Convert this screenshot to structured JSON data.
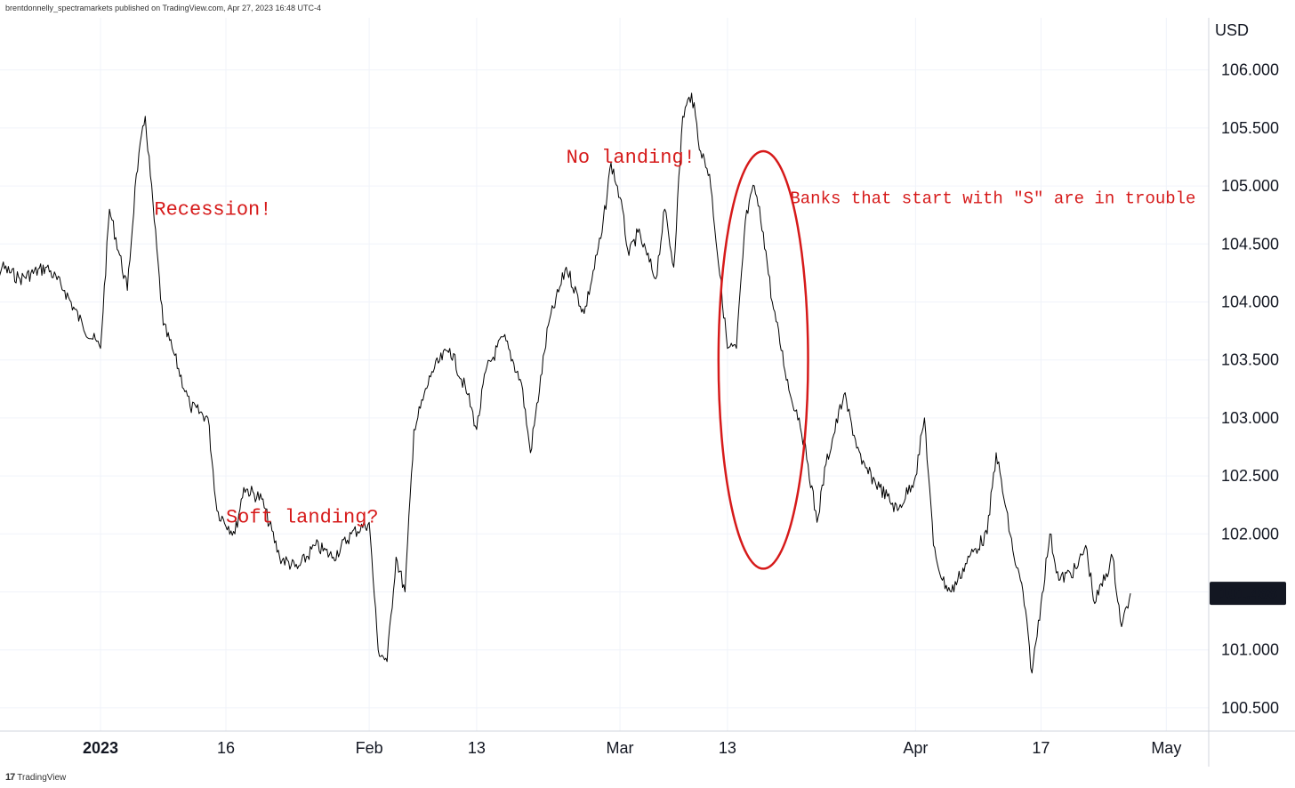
{
  "header": {
    "attribution": "brentdonnelly_spectramarkets published on TradingView.com, Apr 27, 2023 16:48 UTC-4"
  },
  "footer": {
    "logo_mark": "17",
    "logo_text": "TradingView"
  },
  "colors": {
    "price_line": "#000000",
    "annotation": "#d61a1a",
    "grid": "#f0f3fa",
    "price_tag_bg": "#131722",
    "price_tag_text": "#ffffff"
  },
  "chart_data": {
    "type": "line",
    "currency": "USD",
    "last_price": "101.488",
    "ylim": [
      100.3,
      106.45
    ],
    "y_ticks": [
      "100.500",
      "101.000",
      "101.500",
      "102.000",
      "102.500",
      "103.000",
      "103.500",
      "104.000",
      "104.500",
      "105.000",
      "105.500",
      "106.000"
    ],
    "x_ticks": [
      {
        "label": "2023",
        "date": "2023-01-02",
        "bold": true
      },
      {
        "label": "16",
        "date": "2023-01-16",
        "bold": false
      },
      {
        "label": "Feb",
        "date": "2023-02-01",
        "bold": false
      },
      {
        "label": "13",
        "date": "2023-02-13",
        "bold": false
      },
      {
        "label": "Mar",
        "date": "2023-03-01",
        "bold": false
      },
      {
        "label": "13",
        "date": "2023-03-13",
        "bold": false
      },
      {
        "label": "Apr",
        "date": "2023-04-03",
        "bold": false
      },
      {
        "label": "17",
        "date": "2023-04-17",
        "bold": false
      },
      {
        "label": "May",
        "date": "2023-05-01",
        "bold": false
      }
    ],
    "series": [
      {
        "points": [
          [
            "2022-12-20",
            104.0
          ],
          [
            "2022-12-22",
            104.3
          ],
          [
            "2022-12-24",
            104.2
          ],
          [
            "2022-12-27",
            104.3
          ],
          [
            "2022-12-29",
            104.1
          ],
          [
            "2022-12-31",
            103.8
          ],
          [
            "2023-01-02",
            103.6
          ],
          [
            "2023-01-03",
            104.8
          ],
          [
            "2023-01-05",
            104.1
          ],
          [
            "2023-01-06",
            105.1
          ],
          [
            "2023-01-07",
            105.6
          ],
          [
            "2023-01-09",
            103.8
          ],
          [
            "2023-01-10",
            103.6
          ],
          [
            "2023-01-12",
            103.1
          ],
          [
            "2023-01-14",
            103.0
          ],
          [
            "2023-01-15",
            102.2
          ],
          [
            "2023-01-17",
            102.0
          ],
          [
            "2023-01-18",
            102.4
          ],
          [
            "2023-01-20",
            102.3
          ],
          [
            "2023-01-22",
            101.8
          ],
          [
            "2023-01-24",
            101.7
          ],
          [
            "2023-01-26",
            101.9
          ],
          [
            "2023-01-28",
            101.8
          ],
          [
            "2023-01-30",
            102.0
          ],
          [
            "2023-02-01",
            102.1
          ],
          [
            "2023-02-02",
            101.0
          ],
          [
            "2023-02-03",
            100.9
          ],
          [
            "2023-02-04",
            101.8
          ],
          [
            "2023-02-05",
            101.5
          ],
          [
            "2023-02-06",
            102.9
          ],
          [
            "2023-02-08",
            103.4
          ],
          [
            "2023-02-10",
            103.6
          ],
          [
            "2023-02-12",
            103.2
          ],
          [
            "2023-02-13",
            102.9
          ],
          [
            "2023-02-14",
            103.4
          ],
          [
            "2023-02-16",
            103.7
          ],
          [
            "2023-02-18",
            103.3
          ],
          [
            "2023-02-19",
            102.7
          ],
          [
            "2023-02-21",
            103.8
          ],
          [
            "2023-02-23",
            104.3
          ],
          [
            "2023-02-25",
            103.9
          ],
          [
            "2023-02-27",
            104.6
          ],
          [
            "2023-02-28",
            105.2
          ],
          [
            "2023-03-01",
            104.9
          ],
          [
            "2023-03-02",
            104.4
          ],
          [
            "2023-03-03",
            104.6
          ],
          [
            "2023-03-05",
            104.2
          ],
          [
            "2023-03-06",
            104.8
          ],
          [
            "2023-03-07",
            104.3
          ],
          [
            "2023-03-08",
            105.6
          ],
          [
            "2023-03-09",
            105.8
          ],
          [
            "2023-03-10",
            105.3
          ],
          [
            "2023-03-11",
            105.1
          ],
          [
            "2023-03-13",
            103.6
          ],
          [
            "2023-03-14",
            103.6
          ],
          [
            "2023-03-15",
            104.7
          ],
          [
            "2023-03-16",
            105.0
          ],
          [
            "2023-03-17",
            104.6
          ],
          [
            "2023-03-18",
            104.0
          ],
          [
            "2023-03-20",
            103.2
          ],
          [
            "2023-03-21",
            103.0
          ],
          [
            "2023-03-22",
            102.6
          ],
          [
            "2023-03-23",
            102.1
          ],
          [
            "2023-03-24",
            102.6
          ],
          [
            "2023-03-26",
            103.2
          ],
          [
            "2023-03-28",
            102.6
          ],
          [
            "2023-03-30",
            102.4
          ],
          [
            "2023-04-01",
            102.2
          ],
          [
            "2023-04-03",
            102.5
          ],
          [
            "2023-04-04",
            103.0
          ],
          [
            "2023-04-05",
            101.9
          ],
          [
            "2023-04-06",
            101.6
          ],
          [
            "2023-04-07",
            101.5
          ],
          [
            "2023-04-09",
            101.8
          ],
          [
            "2023-04-11",
            102.0
          ],
          [
            "2023-04-12",
            102.7
          ],
          [
            "2023-04-14",
            101.8
          ],
          [
            "2023-04-15",
            101.5
          ],
          [
            "2023-04-16",
            100.8
          ],
          [
            "2023-04-17",
            101.4
          ],
          [
            "2023-04-18",
            102.0
          ],
          [
            "2023-04-19",
            101.6
          ],
          [
            "2023-04-21",
            101.7
          ],
          [
            "2023-04-22",
            101.9
          ],
          [
            "2023-04-23",
            101.4
          ],
          [
            "2023-04-25",
            101.8
          ],
          [
            "2023-04-26",
            101.2
          ],
          [
            "2023-04-27",
            101.488
          ]
        ]
      }
    ],
    "annotations": [
      {
        "id": "recession",
        "text": "Recession!",
        "date": "2023-01-08",
        "value": 104.75
      },
      {
        "id": "soft-landing",
        "text": "Soft landing?",
        "date": "2023-01-16",
        "value": 102.1
      },
      {
        "id": "no-landing",
        "text": "No landing!",
        "date": "2023-02-23",
        "value": 105.2
      },
      {
        "id": "banks",
        "text": "Banks that start with \"S\" are in trouble",
        "date": "2023-03-20",
        "value": 104.85
      }
    ],
    "highlight_ellipse": {
      "date_range": [
        "2023-03-12",
        "2023-03-22"
      ],
      "value_range": [
        101.7,
        105.3
      ]
    }
  }
}
